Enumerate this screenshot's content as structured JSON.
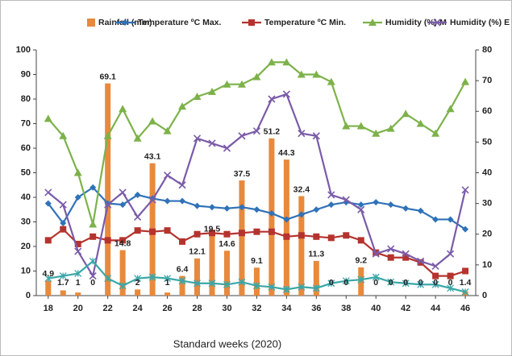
{
  "chart_data": {
    "type": "bar",
    "x_label": "Standard weeks (2020)",
    "x": [
      18,
      19,
      20,
      21,
      22,
      23,
      24,
      25,
      26,
      27,
      28,
      29,
      30,
      31,
      32,
      33,
      34,
      35,
      36,
      37,
      38,
      39,
      40,
      41,
      42,
      43,
      44,
      45,
      46
    ],
    "xlim": [
      17.2,
      46.7
    ],
    "xticks": [
      18,
      20,
      22,
      24,
      26,
      28,
      30,
      32,
      34,
      36,
      38,
      40,
      42,
      44,
      46
    ],
    "ylim": [
      0,
      100
    ],
    "yticks": [
      0,
      10,
      20,
      30,
      40,
      50,
      60,
      70,
      80,
      90,
      100
    ],
    "y2lim": [
      0,
      80
    ],
    "y2ticks": [
      0,
      10,
      20,
      30,
      40,
      50,
      60,
      70,
      80
    ],
    "grid": false,
    "legend": "top",
    "series": [
      {
        "name": "Rainfall (mm)",
        "type": "bar",
        "axis": "y2",
        "color": "#e8893c",
        "data_labels": true,
        "values": [
          4.9,
          1.7,
          1,
          0,
          69.1,
          14.8,
          2,
          43.1,
          1,
          6.4,
          12.1,
          19.5,
          14.6,
          37.5,
          9.1,
          51.2,
          44.3,
          32.4,
          11.3,
          0,
          0,
          9.2,
          0,
          0,
          0,
          0,
          0,
          0,
          1.4
        ]
      },
      {
        "name": "Temperature ºC Max.",
        "type": "line",
        "color": "#2f72b8",
        "marker": "diamond",
        "values": [
          37.5,
          29.5,
          40,
          44,
          37.5,
          37,
          41,
          39.5,
          38.5,
          38.5,
          36.5,
          36,
          35.5,
          36,
          35,
          33.5,
          31,
          33,
          35,
          37,
          38,
          37,
          38,
          37,
          35.5,
          34.5,
          31,
          31,
          27
        ]
      },
      {
        "name": "Temperature ºC Min.",
        "type": "line",
        "color": "#b5332e",
        "marker": "square",
        "values": [
          22.5,
          27,
          21,
          24,
          22.5,
          22.5,
          26.5,
          26,
          26.5,
          22,
          25,
          25.5,
          25,
          25.5,
          26,
          26,
          24,
          24.5,
          24,
          23.5,
          24.5,
          22.5,
          17.5,
          15.5,
          15.5,
          13.5,
          8,
          8,
          10
        ]
      },
      {
        "name": "Humidity (%) M",
        "type": "line",
        "color": "#7db24a",
        "marker": "triangle",
        "values": [
          72,
          65,
          50,
          29,
          65,
          76,
          64,
          71,
          67,
          77,
          81,
          83,
          86,
          86,
          89,
          95,
          95,
          90,
          90,
          87,
          69,
          69,
          66,
          68,
          74,
          70,
          66,
          76,
          87
        ]
      },
      {
        "name": "Humidity (%) E",
        "type": "line",
        "color": "#7a5ba8",
        "marker": "x",
        "values": [
          42,
          37,
          18,
          8,
          37,
          42,
          32,
          39,
          49,
          45,
          64,
          62,
          60,
          65,
          67,
          80,
          82,
          66,
          65,
          41,
          39,
          35,
          17,
          19,
          17,
          14,
          12,
          17,
          43
        ]
      },
      {
        "type": "line",
        "color": "#3aa7a8",
        "marker": "star",
        "values": [
          7,
          8,
          9,
          14,
          7,
          4,
          7,
          7.5,
          7,
          6,
          5,
          5,
          4.5,
          5.5,
          4,
          3.5,
          2.5,
          3.5,
          3,
          5,
          6,
          6.5,
          7.5,
          5.5,
          5,
          4.5,
          4.5,
          3,
          1.5
        ]
      }
    ]
  }
}
